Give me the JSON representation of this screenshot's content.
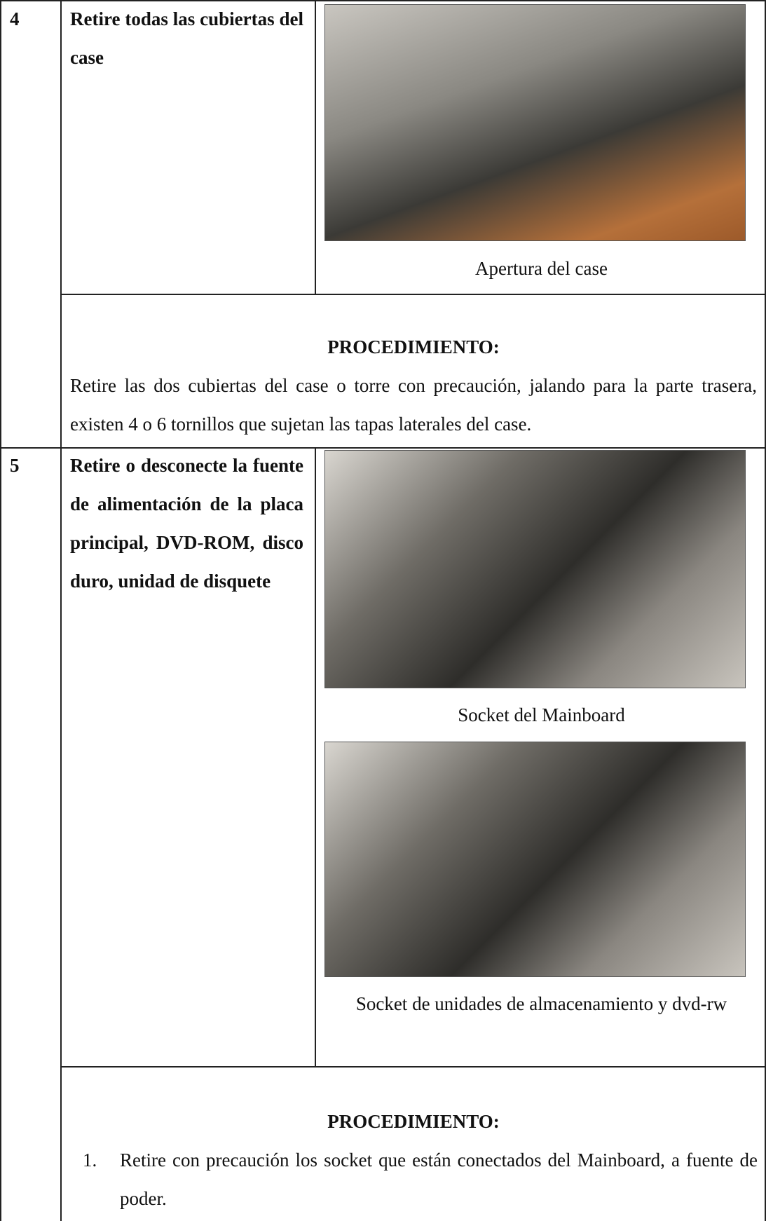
{
  "steps": [
    {
      "number": "4",
      "instruction": "Retire todas las cubiertas del case",
      "captions": [
        "Apertura del case"
      ],
      "procedure": {
        "heading": "PROCEDIMIENTO:",
        "text": "Retire las dos cubiertas del case o torre con precaución, jalando para la parte trasera, existen 4 o 6 tornillos que sujetan las tapas laterales del case."
      }
    },
    {
      "number": "5",
      "instruction": "Retire o desconecte la fuente de alimentación de la placa principal, DVD-ROM, disco duro, unidad de disquete",
      "captions": [
        "Socket del Mainboard",
        "Socket de unidades de almacenamiento y dvd-rw"
      ],
      "procedure": {
        "heading": "PROCEDIMIENTO:",
        "items": [
          {
            "marker": "1.",
            "text": "Retire con precaución los socket que están conectados del Mainboard, a fuente de poder."
          }
        ]
      }
    }
  ]
}
